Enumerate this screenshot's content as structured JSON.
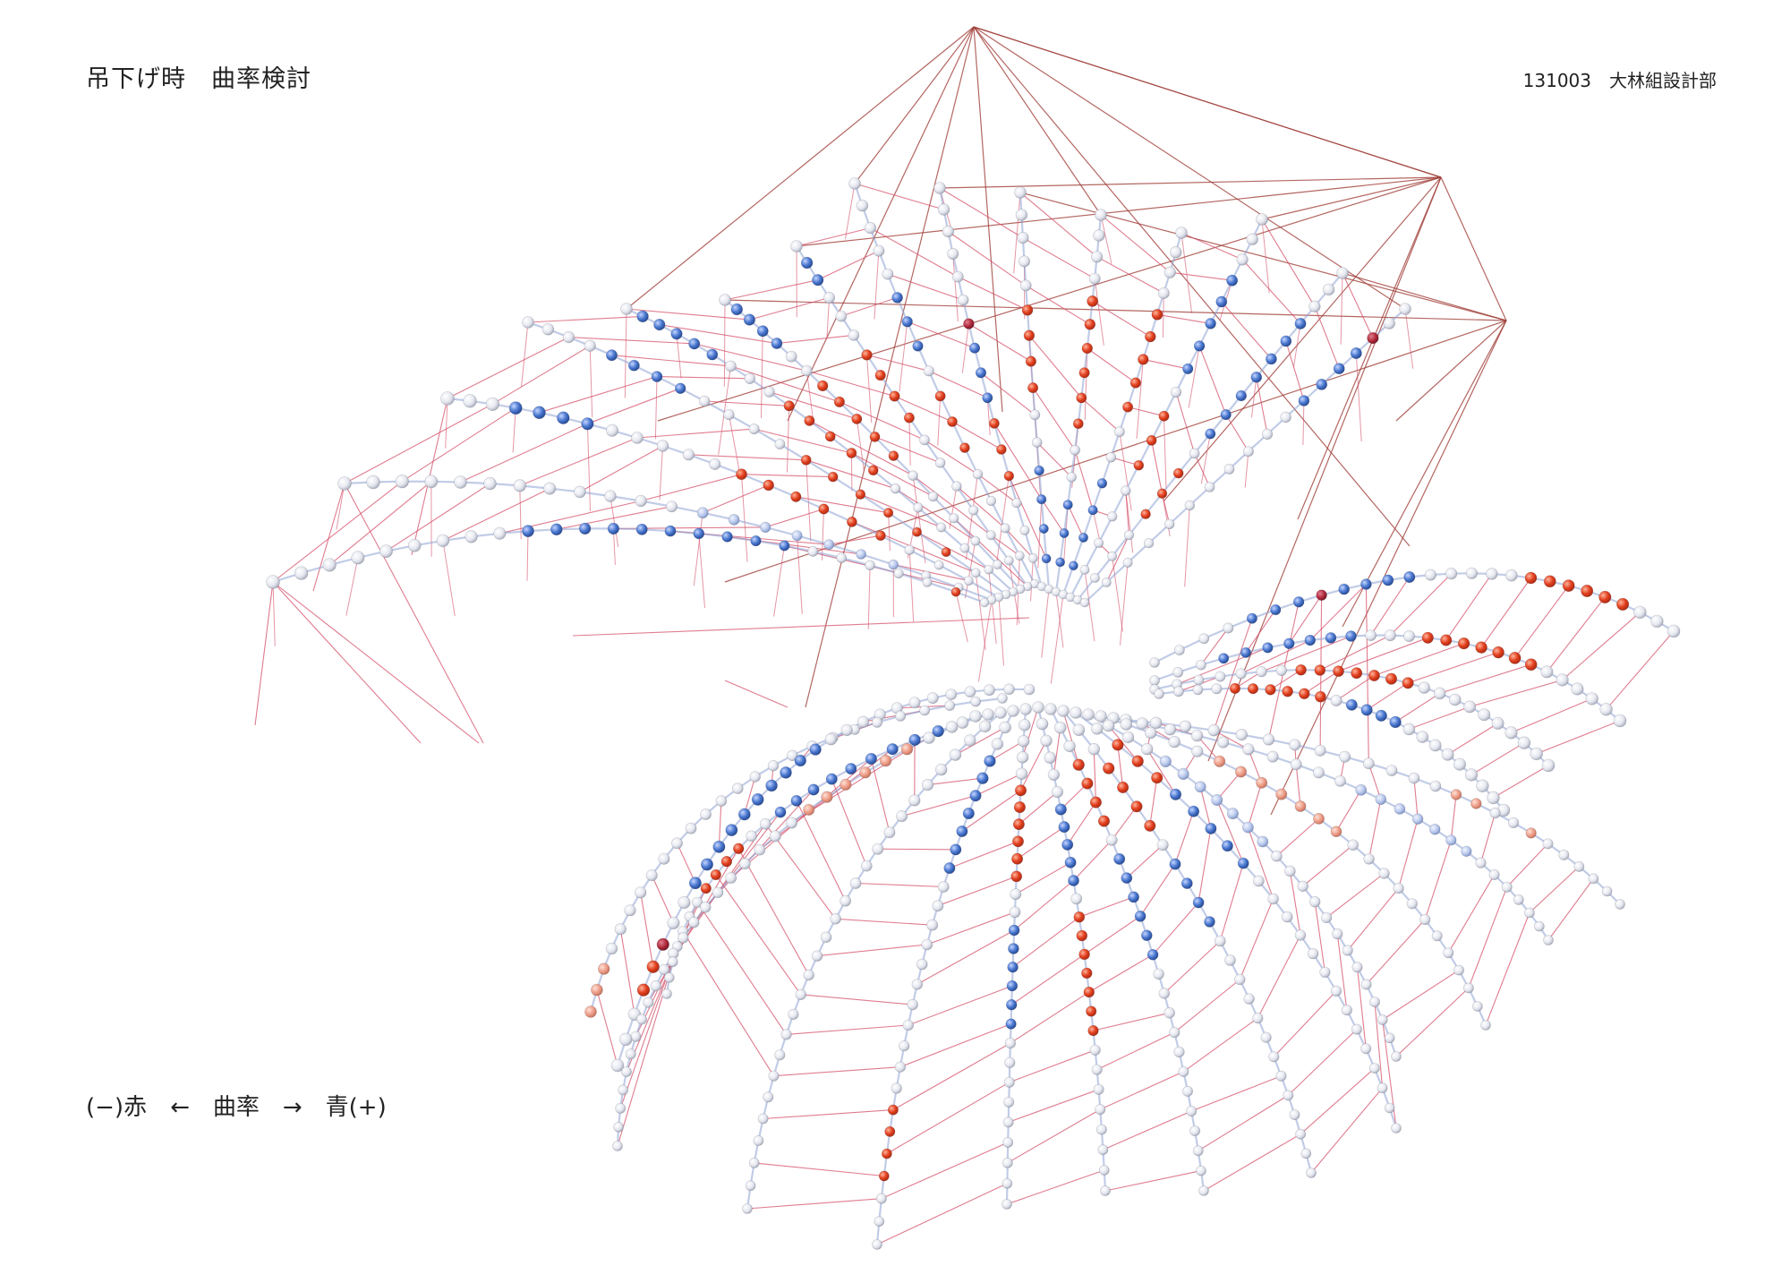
{
  "header": {
    "title": "吊下げ時　曲率検討",
    "meta": "131003　大林組設計部"
  },
  "legend": {
    "text": "(−)赤　←　曲率　→　青(+)"
  },
  "colors": {
    "negative": "#e03c1e",
    "negative_strong": "#b0283a",
    "positive": "#4a78d0",
    "neutral": "#e8eaf0",
    "wire": "#d4506a",
    "hang": "#a0403a"
  }
}
